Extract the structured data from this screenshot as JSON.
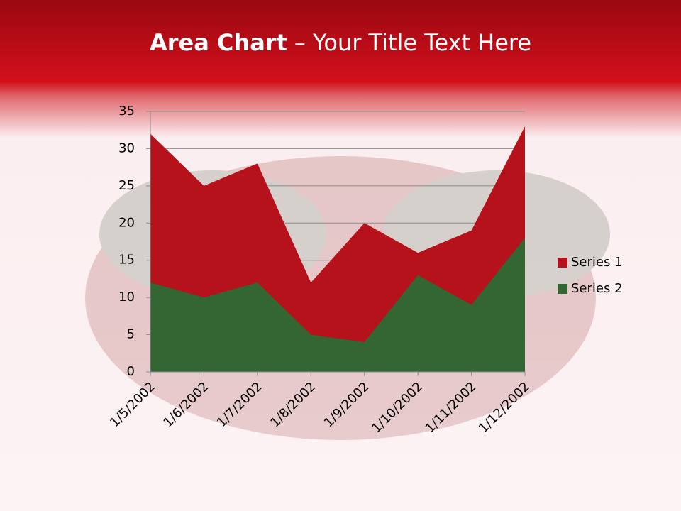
{
  "chart_data": {
    "type": "area",
    "title_parts": [
      "Area Chart",
      "– Your Title Text Here"
    ],
    "categories": [
      "1/5/2002",
      "1/6/2002",
      "1/7/2002",
      "1/8/2002",
      "1/9/2002",
      "1/10/2002",
      "1/11/2002",
      "1/12/2002"
    ],
    "series": [
      {
        "name": "Series 1",
        "color": "#b5121b",
        "values": [
          32,
          25,
          28,
          12,
          20,
          16,
          19,
          33
        ]
      },
      {
        "name": "Series 2",
        "color": "#336633",
        "values": [
          12,
          10,
          12,
          5,
          4,
          13,
          9,
          18
        ]
      }
    ],
    "ylim": [
      0,
      35
    ],
    "yticks": [
      0,
      5,
      10,
      15,
      20,
      25,
      30,
      35
    ],
    "grid": true,
    "legend": "right"
  }
}
